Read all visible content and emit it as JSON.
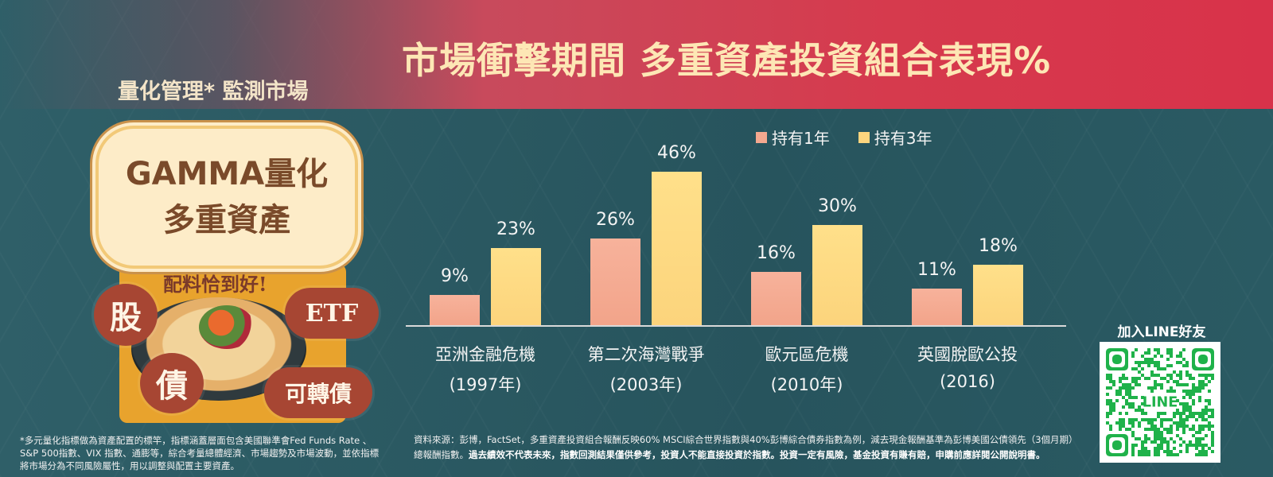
{
  "header": {
    "title": "市場衝擊期間 多重資產投資組合表現%",
    "subtitle": "量化管理* 監測市場"
  },
  "promo": {
    "badge_line1": "GAMMA量化",
    "badge_line2": "多重資產",
    "tagline": "配料恰到好!",
    "chips": {
      "stock": "股",
      "etf": "ETF",
      "bond": "債",
      "convertible": "可轉債"
    }
  },
  "chart_data": {
    "type": "bar",
    "categories": [
      "亞洲金融危機",
      "第二次海灣戰爭",
      "歐元區危機",
      "英國脫歐公投"
    ],
    "category_years": [
      "(1997年)",
      "(2003年)",
      "(2010年)",
      "(2016)"
    ],
    "series": [
      {
        "name": "持有1年",
        "values": [
          9,
          26,
          16,
          11
        ],
        "labels": [
          "9%",
          "26%",
          "16%",
          "11%"
        ],
        "color": "#f4a88f"
      },
      {
        "name": "持有3年",
        "values": [
          23,
          46,
          30,
          18
        ],
        "labels": [
          "23%",
          "46%",
          "30%",
          "18%"
        ],
        "color": "#fdd57e"
      }
    ],
    "ylim": [
      0,
      50
    ],
    "legend": "top-right",
    "grid": false
  },
  "line": {
    "label": "加入LINE好友",
    "qr_text": "LINE"
  },
  "footnotes": {
    "left": "*多元量化指標做為資產配置的標竿，指標涵蓋層面包含美國聯準會Fed Funds Rate 、S&P 500指數、VIX 指數、通膨等，綜合考量總體經濟、市場趨勢及市場波動，並依指標將市場分為不同風險屬性，用以調整與配置主要資產。",
    "right_normal": "資料來源：彭博，FactSet，多重資產投資組合報酬反映60% MSCI綜合世界指數與40%彭博綜合債券指數為例，減去現金報酬基準為彭博美國公債領先（3個月期）總報酬指數。",
    "right_bold": "過去績效不代表未來，指數回測結果僅供參考，投資人不能直接投資於指數。投資一定有風險，基金投資有賺有賠，申購前應詳閱公開說明書。"
  },
  "colors": {
    "background": "#2b5a63",
    "title_band": "#d63a4d",
    "title_text": "#fde7b5",
    "bar_1y": "#f4a88f",
    "bar_3y": "#fdd57e"
  }
}
